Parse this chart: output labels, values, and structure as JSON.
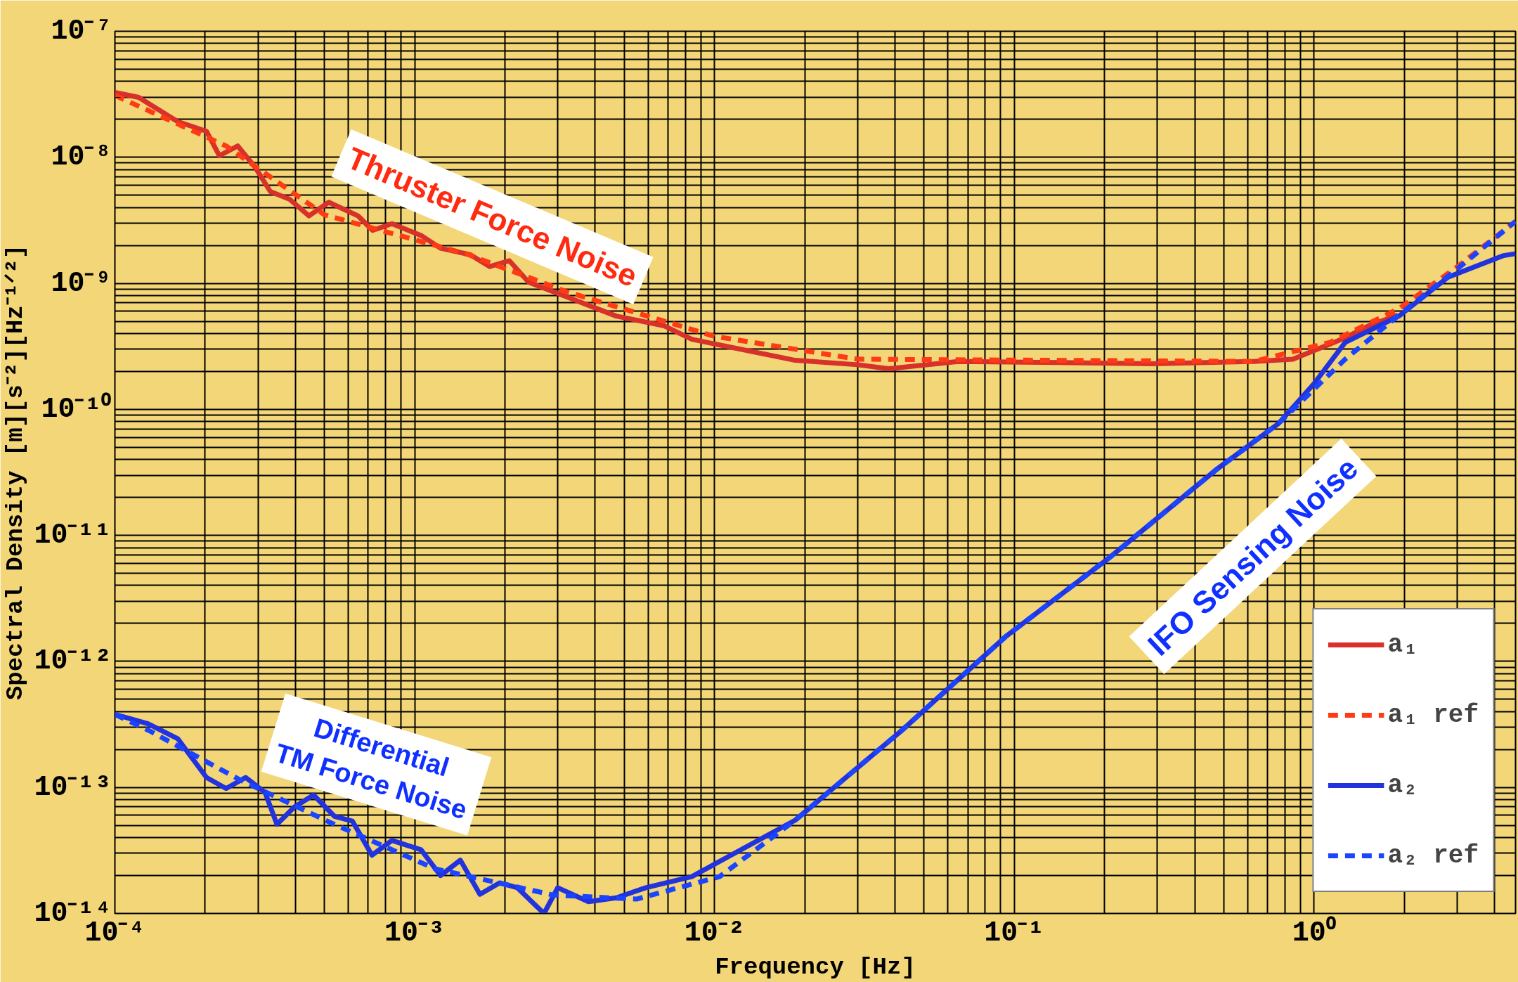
{
  "chart_data": {
    "type": "line",
    "xlabel": "Frequency [Hz]",
    "ylabel": "Spectral Density [m][s⁻²][Hz⁻¹ᐟ²]",
    "log": "xy",
    "grid": true,
    "legend": "bottom right",
    "xlim": [
      0.0001,
      4.7
    ],
    "ylim": [
      1e-14,
      1e-07
    ],
    "xticks": [
      {
        "value": 0.0001,
        "label": "10⁻⁴"
      },
      {
        "value": 0.001,
        "label": "10⁻³"
      },
      {
        "value": 0.01,
        "label": "10⁻²"
      },
      {
        "value": 0.1,
        "label": "10⁻¹"
      },
      {
        "value": 1,
        "label": "10⁰"
      }
    ],
    "yticks": [
      {
        "value": 1e-14,
        "label": "10⁻¹⁴"
      },
      {
        "value": 1e-13,
        "label": "10⁻¹³"
      },
      {
        "value": 1e-12,
        "label": "10⁻¹²"
      },
      {
        "value": 1e-11,
        "label": "10⁻¹¹"
      },
      {
        "value": 1e-10,
        "label": "10⁻¹⁰"
      },
      {
        "value": 1e-09,
        "label": "10⁻⁹"
      },
      {
        "value": 1e-08,
        "label": "10⁻⁸"
      },
      {
        "value": 1e-07,
        "label": "10⁻⁷"
      }
    ],
    "series": [
      {
        "name": "a₁",
        "color": "#d8302a",
        "line_style": "solid",
        "x": [
          0.0001,
          0.00012,
          0.000162,
          0.000202,
          0.000223,
          0.000257,
          0.000294,
          0.00033,
          0.000383,
          0.000444,
          0.000517,
          0.000647,
          0.000724,
          0.00084,
          0.00105,
          0.00122,
          0.00153,
          0.00178,
          0.00207,
          0.0024,
          0.0032,
          0.0047,
          0.0068,
          0.0084,
          0.0186,
          0.03,
          0.038,
          0.065,
          0.14,
          0.29,
          0.63,
          0.85,
          1.13,
          1.27,
          1.52,
          1.9
        ],
        "values": [
          3.27e-08,
          2.99e-08,
          1.92e-08,
          1.61e-08,
          1.03e-08,
          1.23e-08,
          8.3e-09,
          5.35e-09,
          4.64e-09,
          3.43e-09,
          4.4e-09,
          3.43e-09,
          2.63e-09,
          2.97e-09,
          2.4e-09,
          1.9e-09,
          1.69e-09,
          1.36e-09,
          1.51e-09,
          1.02e-09,
          7.85e-10,
          5.5e-10,
          4.6e-10,
          3.6e-10,
          2.45e-10,
          2.26e-10,
          2.1e-10,
          2.4e-10,
          2.35e-10,
          2.3e-10,
          2.4e-10,
          2.5e-10,
          3.3e-10,
          3.7e-10,
          4.6e-10,
          5.6e-10
        ]
      },
      {
        "name": "a₁ ref",
        "color": "#ff3b14",
        "line_style": "dashed",
        "x": [
          0.0001,
          0.000235,
          0.0005,
          0.0015,
          0.0032,
          0.01,
          0.03,
          0.63,
          1.13,
          1.92,
          3.0,
          4.7
        ],
        "values": [
          3.1e-08,
          1.23e-08,
          3.5e-09,
          1.7e-09,
          8.6e-10,
          3.8e-10,
          2.5e-10,
          2.4e-10,
          3.4e-10,
          6.3e-10,
          1.35e-09,
          3.1e-09
        ]
      },
      {
        "name": "a₂",
        "color": "#2233dd",
        "line_style": "solid",
        "x": [
          0.0001,
          0.000129,
          0.000162,
          0.000202,
          0.000235,
          0.000273,
          0.000317,
          0.000347,
          0.000397,
          0.00046,
          0.00054,
          0.00062,
          0.00072,
          0.00084,
          0.00105,
          0.00122,
          0.00142,
          0.00165,
          0.00192,
          0.0022,
          0.0027,
          0.003,
          0.0038,
          0.0047,
          0.0059,
          0.0084,
          0.0186,
          0.0419,
          0.0935,
          0.21,
          0.47,
          0.76,
          1.0,
          1.27,
          1.92,
          2.8,
          4.29,
          4.7
        ],
        "values": [
          3.8e-13,
          3.2e-13,
          2.44e-13,
          1.2e-13,
          9.8e-14,
          1.2e-13,
          9.1e-14,
          5.1e-14,
          7e-14,
          8.7e-14,
          5.9e-14,
          5.4e-14,
          2.9e-14,
          3.8e-14,
          3.2e-14,
          2e-14,
          2.65e-14,
          1.42e-14,
          1.75e-14,
          1.6e-14,
          1e-14,
          1.6e-14,
          1.24e-14,
          1.33e-14,
          1.6e-14,
          1.96e-14,
          5.5e-14,
          2.8e-13,
          1.57e-12,
          6.8e-12,
          3.3e-11,
          7.7e-11,
          1.6e-10,
          3.4e-10,
          5.5e-10,
          1.12e-09,
          1.66e-09,
          1.72e-09
        ]
      },
      {
        "name": "a₂ ref",
        "color": "#1a44ff",
        "line_style": "dashed",
        "x": [
          0.0001,
          0.000131,
          0.000261,
          0.00052,
          0.00117,
          0.0029,
          0.0055,
          0.0104,
          0.0186,
          0.0419,
          0.0935,
          0.21,
          0.47,
          0.76,
          1.27,
          1.92,
          3.0,
          4.7
        ],
        "values": [
          3.8e-13,
          2.8e-13,
          1.15e-13,
          5.3e-14,
          2.26e-14,
          1.4e-14,
          1.3e-14,
          1.96e-14,
          5.5e-14,
          2.8e-13,
          1.57e-12,
          6.8e-12,
          3.3e-11,
          7.7e-11,
          2.5e-10,
          5.6e-10,
          1.3e-09,
          3.1e-09
        ]
      }
    ],
    "annotations": [
      "Thruster Force Noise",
      "Differential\nTM Force Noise",
      "IFO Sensing Noise"
    ]
  }
}
